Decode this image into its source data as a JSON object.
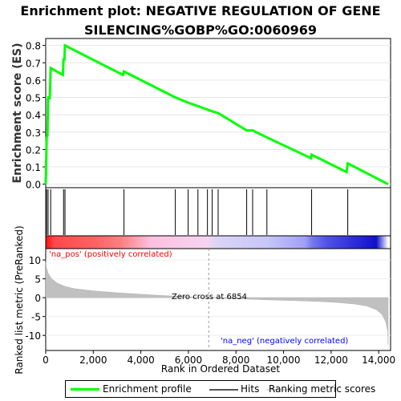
{
  "title_lines": [
    "Enrichment plot: NEGATIVE REGULATION OF GENE",
    "SILENCING%GOBP%GO:0060969"
  ],
  "colors": {
    "enrichment": "#00ff00",
    "hits": "#000000",
    "ranking_fill": "#c0c0c0",
    "pos_text": "#ff0000",
    "neg_text": "#0000ff",
    "zero_line": "#999999"
  },
  "chart_data": [
    {
      "type": "line",
      "name": "enrichment-profile",
      "ylabel": "Enrichment score (ES)",
      "xlim": [
        0,
        14500
      ],
      "ylim": [
        -0.02,
        0.84
      ],
      "yticks": [
        0.0,
        0.1,
        0.2,
        0.3,
        0.4,
        0.5,
        0.6,
        0.7,
        0.8
      ],
      "grid": true,
      "points": [
        [
          0,
          0.0
        ],
        [
          40,
          0.27
        ],
        [
          75,
          0.28
        ],
        [
          100,
          0.5
        ],
        [
          150,
          0.5
        ],
        [
          170,
          0.49
        ],
        [
          210,
          0.67
        ],
        [
          720,
          0.63
        ],
        [
          750,
          0.72
        ],
        [
          790,
          0.72
        ],
        [
          810,
          0.8
        ],
        [
          3250,
          0.63
        ],
        [
          3290,
          0.65
        ],
        [
          5450,
          0.5
        ],
        [
          5990,
          0.47
        ],
        [
          6400,
          0.45
        ],
        [
          6800,
          0.43
        ],
        [
          7000,
          0.42
        ],
        [
          7250,
          0.41
        ],
        [
          8450,
          0.31
        ],
        [
          8700,
          0.31
        ],
        [
          9300,
          0.27
        ],
        [
          11150,
          0.15
        ],
        [
          11180,
          0.17
        ],
        [
          12650,
          0.07
        ],
        [
          12700,
          0.12
        ],
        [
          14400,
          0.0
        ]
      ]
    },
    {
      "type": "hits",
      "name": "hits",
      "positions": [
        40,
        100,
        210,
        750,
        810,
        3290,
        5450,
        5990,
        6400,
        6800,
        7000,
        7250,
        8450,
        8700,
        9300,
        11180,
        12700
      ]
    },
    {
      "type": "heatmap",
      "name": "ranking-colorbar",
      "stops": [
        {
          "rank": 0,
          "color": "#ff0d0d"
        },
        {
          "rank": 350,
          "color": "#ff4848"
        },
        {
          "rank": 2100,
          "color": "#ff6262"
        },
        {
          "rank": 3200,
          "color": "#ff8181"
        },
        {
          "rank": 4400,
          "color": "#ffbfe0"
        },
        {
          "rank": 6800,
          "color": "#f5d4ef"
        },
        {
          "rank": 7200,
          "color": "#dcd4f6"
        },
        {
          "rank": 9300,
          "color": "#c6c6fa"
        },
        {
          "rank": 10900,
          "color": "#a0a0f6"
        },
        {
          "rank": 11200,
          "color": "#7878f2"
        },
        {
          "rank": 11850,
          "color": "#5050e8"
        },
        {
          "rank": 13900,
          "color": "#1010cc"
        },
        {
          "rank": 14400,
          "color": "#ffffff"
        }
      ]
    },
    {
      "type": "area",
      "name": "ranked-list-metric",
      "ylabel": "Ranked list metric (PreRanked)",
      "xlabel": "Rank in Ordered Dataset",
      "xlim": [
        0,
        14500
      ],
      "ylim": [
        -14,
        13
      ],
      "yticks": [
        10,
        5,
        0,
        -5,
        -10
      ],
      "xticks": [
        0,
        2000,
        4000,
        6000,
        8000,
        10000,
        12000,
        14000
      ],
      "xtick_labels": [
        "0",
        "2,000",
        "4,000",
        "6,000",
        "8,000",
        "10,000",
        "12,000",
        "14,000"
      ],
      "zero_cross": 6854,
      "points": [
        [
          0,
          9.5
        ],
        [
          30,
          8.0
        ],
        [
          100,
          6.5
        ],
        [
          250,
          5.0
        ],
        [
          500,
          3.8
        ],
        [
          800,
          3.0
        ],
        [
          1200,
          2.4
        ],
        [
          2000,
          1.8
        ],
        [
          3000,
          1.3
        ],
        [
          4000,
          0.9
        ],
        [
          5000,
          0.55
        ],
        [
          6000,
          0.25
        ],
        [
          6854,
          0.0
        ],
        [
          7500,
          -0.2
        ],
        [
          8500,
          -0.4
        ],
        [
          9500,
          -0.6
        ],
        [
          10500,
          -0.8
        ],
        [
          11500,
          -1.0
        ],
        [
          12300,
          -1.3
        ],
        [
          13000,
          -1.7
        ],
        [
          13500,
          -2.2
        ],
        [
          13900,
          -3.2
        ],
        [
          14150,
          -4.5
        ],
        [
          14300,
          -6.5
        ],
        [
          14380,
          -9.0
        ],
        [
          14400,
          -12.5
        ]
      ]
    }
  ],
  "annotations": {
    "pos_label": "'na_pos' (positively correlated)",
    "neg_label": "'na_neg' (negatively correlated)",
    "zero_cross_label": "Zero cross at 6854"
  },
  "legend": {
    "items": [
      {
        "label": "Enrichment profile",
        "color": "#00ff00"
      },
      {
        "label": "Hits",
        "color": "#000000"
      },
      {
        "label": "Ranking metric scores",
        "color": "#c0c0c0"
      }
    ]
  }
}
